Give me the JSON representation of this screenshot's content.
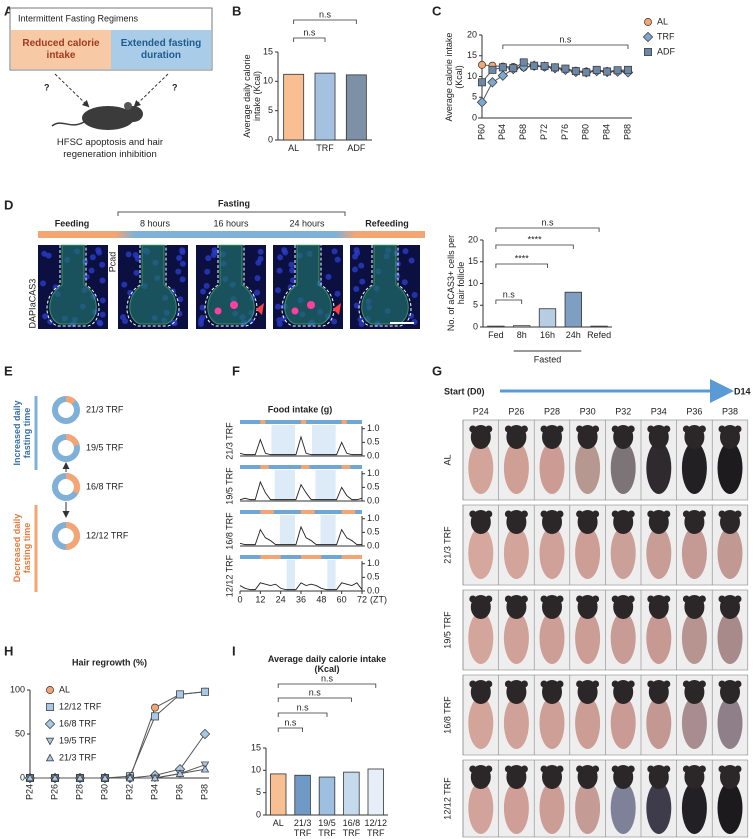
{
  "panels": {
    "A": {
      "label": "A",
      "title": "Intermittent Fasting Regimens",
      "left_box": "Reduced calorie intake",
      "right_box": "Extended fasting duration",
      "arrows": [
        "?",
        "?"
      ],
      "outcome": "HFSC apoptosis and hair regeneration inhibition"
    },
    "B": {
      "label": "B"
    },
    "C": {
      "label": "C"
    },
    "D": {
      "label": "D",
      "group": "Fasting",
      "stages": [
        "Feeding",
        "8 hours",
        "16 hours",
        "24 hours",
        "Refeeding"
      ],
      "stains": [
        "DAPI",
        "aCAS3",
        "Pcad"
      ]
    },
    "E": {
      "label": "E",
      "up": "Increased daily fasting time",
      "down": "Decreased daily fasting time",
      "regimens": [
        "21/3 TRF",
        "19/5 TRF",
        "16/8 TRF",
        "12/12 TRF"
      ],
      "feeding_hours": [
        3,
        5,
        8,
        12
      ]
    },
    "F": {
      "label": "F"
    },
    "G": {
      "label": "G",
      "start": "Start (D0)",
      "end": "D14",
      "days": [
        "P24",
        "P26",
        "P28",
        "P30",
        "P32",
        "P34",
        "P36",
        "P38"
      ],
      "rows": [
        {
          "name": "AL",
          "shades": [
            "#d3a49a",
            "#cf9f96",
            "#cc9c94",
            "#b79891",
            "#7d7478",
            "#2f2a2d",
            "#222023",
            "#1d1b1e"
          ]
        },
        {
          "name": "21/3 TRF",
          "shades": [
            "#d5a79d",
            "#d2a49a",
            "#cfa198",
            "#cc9e95",
            "#caa099",
            "#c89d96",
            "#c59a94",
            "#c29892"
          ]
        },
        {
          "name": "19/5 TRF",
          "shades": [
            "#d4a59b",
            "#d0a198",
            "#cd9e96",
            "#cb9d95",
            "#c89b94",
            "#c69a93",
            "#b89490",
            "#a88a8a"
          ]
        },
        {
          "name": "16/8 TRF",
          "shades": [
            "#d3a49a",
            "#d0a198",
            "#ce9f96",
            "#cb9d95",
            "#c99b94",
            "#c39893",
            "#a98c8f",
            "#8f7f88"
          ]
        },
        {
          "name": "12/12 TRF",
          "shades": [
            "#d2a39a",
            "#cf9f97",
            "#cc9d95",
            "#c59b96",
            "#7f8199",
            "#3e3b4a",
            "#222024",
            "#1c1a1d"
          ]
        }
      ]
    },
    "H": {
      "label": "H"
    },
    "I": {
      "label": "I"
    }
  },
  "chart_data": [
    {
      "type": "bar",
      "ylabel": "Average daily calorie intake (Kcal)",
      "categories": [
        "AL",
        "TRF",
        "ADF"
      ],
      "values": [
        11.2,
        11.4,
        11.1
      ],
      "colors": [
        "#f7bf92",
        "#a4c2e0",
        "#7d90a6"
      ],
      "ylim": [
        0,
        15
      ],
      "yticks": [
        0,
        5,
        10,
        15
      ],
      "annotations": [
        "n.s",
        "n.s"
      ]
    },
    {
      "type": "line",
      "ylabel": "Average calorie intake (Kcal)",
      "categories": [
        "P60",
        null,
        "P64",
        null,
        "P68",
        null,
        "P72",
        null,
        "P76",
        null,
        "P80",
        null,
        "P84",
        null,
        "P88"
      ],
      "series": [
        {
          "name": "AL",
          "color": "#f4a574",
          "marker": "circle",
          "values": [
            12.8,
            12.6,
            12.4,
            12.3,
            12.2,
            12.5,
            12.3,
            12.1,
            11.8,
            11.4,
            11.2,
            11.5,
            11.3,
            11.4,
            11.2
          ]
        },
        {
          "name": "TRF",
          "color": "#7fa8cf",
          "marker": "diamond",
          "values": [
            3.8,
            8.6,
            10.2,
            11.8,
            12.3,
            12.6,
            12.4,
            12.0,
            11.6,
            11.1,
            11.0,
            11.3,
            11.1,
            11.2,
            11.0
          ]
        },
        {
          "name": "ADF",
          "color": "#6d87a6",
          "marker": "square",
          "values": [
            8.6,
            11.6,
            12.2,
            12.0,
            13.4,
            12.6,
            12.5,
            12.2,
            11.9,
            11.3,
            11.0,
            11.6,
            11.2,
            11.5,
            11.6
          ]
        }
      ],
      "ylim": [
        0,
        20
      ],
      "yticks": [
        0,
        5,
        10,
        15,
        20
      ],
      "annotations": [
        "n.s"
      ],
      "legend": "right"
    },
    {
      "type": "bar",
      "ylabel": "No. of aCAS3+ cells per hair follicle",
      "categories": [
        "Fed",
        "8h",
        "16h",
        "24h",
        "Refed"
      ],
      "values": [
        0.2,
        0.3,
        4.2,
        8,
        0.2
      ],
      "colors": [
        "#cfd4da",
        "#dfe8f0",
        "#b6cde4",
        "#7f9fc2",
        "#e2e6ea"
      ],
      "ylim": [
        0,
        20
      ],
      "yticks": [
        0,
        5,
        10,
        15,
        20
      ],
      "annotations": [
        "n.s",
        "****",
        "****",
        "n.s"
      ],
      "group_label": "Fasted"
    },
    {
      "type": "trace",
      "title": "Food intake (g)",
      "x": [
        0,
        3,
        6,
        9,
        12,
        15,
        18,
        21,
        24,
        27,
        30,
        33,
        36,
        39,
        42,
        45,
        48,
        51,
        54,
        57,
        60,
        63,
        66,
        69,
        72
      ],
      "xlim": [
        0,
        72
      ],
      "xticks": [
        0,
        12,
        24,
        36,
        48,
        60,
        72
      ],
      "xunit": "(ZT)",
      "ylim": [
        0,
        1.1
      ],
      "yticks": [
        {
          "value": 0,
          "label": "0.0"
        },
        {
          "value": 0.5,
          "label": "0.5"
        },
        {
          "value": 1,
          "label": "1.0"
        }
      ],
      "series": [
        {
          "name": "21/3 TRF",
          "color": "#222222",
          "windows": [
            [
              12,
              15
            ],
            [
              36,
              39
            ],
            [
              60,
              63
            ]
          ],
          "values": [
            0.1,
            0.05,
            0.05,
            0.05,
            0.6,
            0.1,
            0.05,
            0.05,
            0.05,
            0.05,
            0.05,
            0.05,
            0.7,
            0.1,
            0.05,
            0.05,
            0.05,
            0.05,
            0.05,
            0.05,
            0.5,
            0.1,
            0.05,
            0.05,
            0.05
          ]
        },
        {
          "name": "19/5 TRF",
          "color": "#222222",
          "windows": [
            [
              12,
              17
            ],
            [
              36,
              41
            ],
            [
              60,
              65
            ]
          ],
          "values": [
            0.05,
            0.1,
            0.05,
            0.05,
            0.7,
            0.3,
            0.05,
            0.05,
            0.05,
            0.05,
            0.05,
            0.05,
            0.6,
            0.3,
            0.05,
            0.05,
            0.05,
            0.05,
            0.05,
            0.05,
            0.5,
            0.2,
            0.05,
            0.05,
            0.1
          ]
        },
        {
          "name": "16/8 TRF",
          "color": "#222222",
          "windows": [
            [
              12,
              20
            ],
            [
              36,
              44
            ],
            [
              60,
              68
            ]
          ],
          "values": [
            0.1,
            0.05,
            0.05,
            0.05,
            0.6,
            0.3,
            0.2,
            0.05,
            0.05,
            0.05,
            0.05,
            0.05,
            0.7,
            0.3,
            0.2,
            0.05,
            0.05,
            0.05,
            0.05,
            0.05,
            0.6,
            0.3,
            0.2,
            0.05,
            0.05
          ]
        },
        {
          "name": "12/12 TRF",
          "color": "#222222",
          "windows": [
            [
              12,
              24
            ],
            [
              36,
              48
            ],
            [
              60,
              72
            ]
          ],
          "values": [
            0.2,
            0.1,
            0.05,
            0.05,
            0.3,
            0.25,
            0.2,
            0.25,
            0.1,
            0.05,
            0.05,
            0.05,
            0.3,
            0.2,
            0.25,
            0.2,
            0.1,
            0.05,
            0.05,
            0.05,
            0.3,
            0.25,
            0.2,
            0.3,
            0.05
          ]
        }
      ]
    },
    {
      "type": "line",
      "title": "Hair regrowth (%)",
      "categories": [
        "P24",
        "P26",
        "P28",
        "P30",
        "P32",
        "P34",
        "P36",
        "P38"
      ],
      "series": [
        {
          "name": "AL",
          "color": "#f4a574",
          "marker": "circle",
          "values": [
            0,
            0,
            0,
            0,
            0,
            80,
            95,
            98
          ]
        },
        {
          "name": "12/12 TRF",
          "color": "#a9c8e6",
          "marker": "square",
          "values": [
            0,
            0,
            0,
            0,
            2,
            70,
            95,
            98
          ]
        },
        {
          "name": "16/8 TRF",
          "color": "#a9c8e6",
          "marker": "diamond",
          "values": [
            0,
            0,
            0,
            0,
            0,
            3,
            10,
            50
          ]
        },
        {
          "name": "19/5 TRF",
          "color": "#a9c8e6",
          "marker": "triangle-down",
          "values": [
            0,
            0,
            0,
            0,
            0,
            0,
            5,
            15
          ]
        },
        {
          "name": "21/3 TRF",
          "color": "#a9c8e6",
          "marker": "triangle-up",
          "values": [
            0,
            0,
            0,
            0,
            0,
            0,
            5,
            10
          ]
        }
      ],
      "ylim": [
        0,
        100
      ],
      "yticks": [
        0,
        50,
        100
      ],
      "legend": "upper left"
    },
    {
      "type": "bar",
      "title": "Average daily calorie intake (Kcal)",
      "categories": [
        "AL",
        "21/3 TRF",
        "19/5 TRF",
        "16/8 TRF",
        "12/12 TRF"
      ],
      "values": [
        9.2,
        8.9,
        8.5,
        9.6,
        10.3
      ],
      "colors": [
        "#f7bf92",
        "#6f9ac6",
        "#9dbfe0",
        "#c5daee",
        "#e6eef7"
      ],
      "ylim": [
        0,
        15
      ],
      "yticks": [
        0,
        5,
        10,
        15
      ],
      "annotations": [
        "n.s",
        "n.s",
        "n.s",
        "n.s"
      ]
    }
  ]
}
